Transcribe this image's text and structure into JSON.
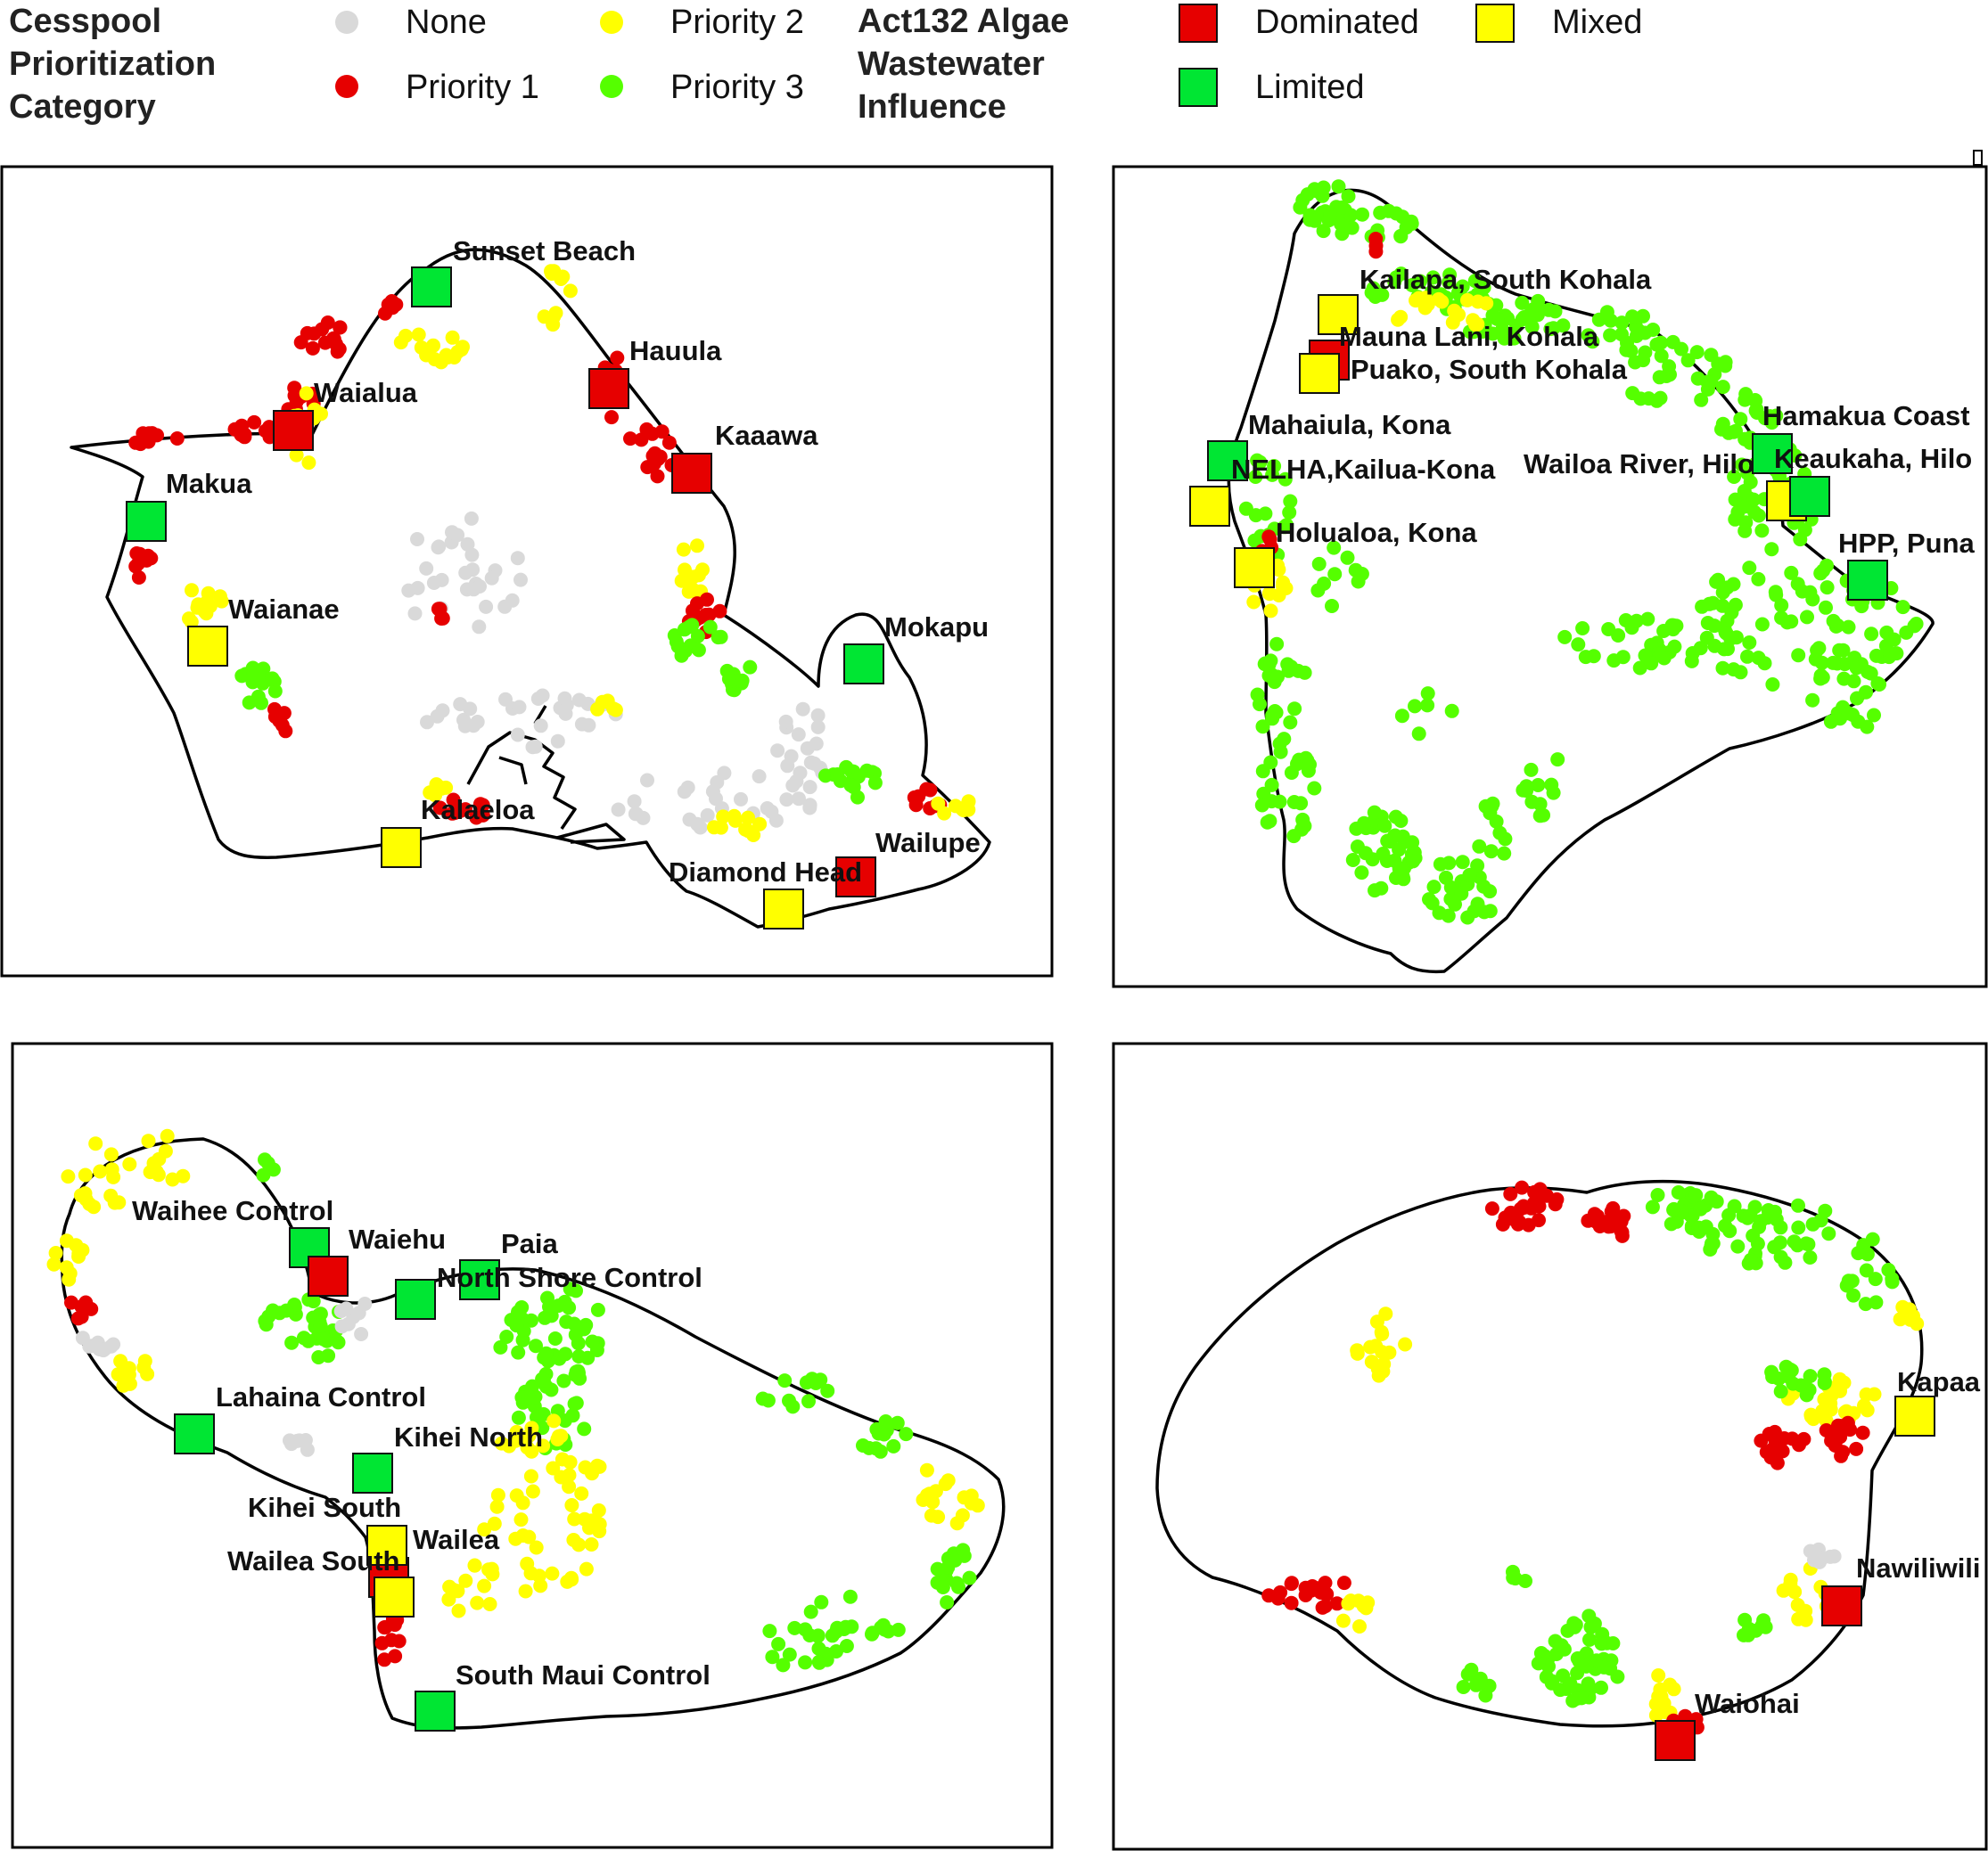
{
  "legend": {
    "cesspool": {
      "title": "Cesspool\nPrioritization\nCategory",
      "items": [
        {
          "label": "None",
          "color": "#d9d9d9"
        },
        {
          "label": "Priority 1",
          "color": "#e60000"
        },
        {
          "label": "Priority 2",
          "color": "#ffff00"
        },
        {
          "label": "Priority 3",
          "color": "#55ff00"
        }
      ]
    },
    "algae": {
      "title": "Act132 Algae\nWastewater\nInfluence",
      "items": [
        {
          "label": "Dominated",
          "color": "#e60000"
        },
        {
          "label": "Mixed",
          "color": "#ffff00"
        },
        {
          "label": "Limited",
          "color": "#00e633"
        }
      ]
    }
  },
  "colors": {
    "None": "#d9d9d9",
    "Priority 1": "#e60000",
    "Priority 2": "#ffff00",
    "Priority 3": "#55ff00",
    "Dominated": "#e60000",
    "Mixed": "#ffff00",
    "Limited": "#00e633"
  },
  "panels": [
    {
      "id": "oahu",
      "sites": [
        {
          "label": "Sunset Beach",
          "influence": "Limited"
        },
        {
          "label": "Hauula",
          "influence": "Dominated"
        },
        {
          "label": "Waialua",
          "influence": "Dominated"
        },
        {
          "label": "Kaaawa",
          "influence": "Dominated"
        },
        {
          "label": "Makua",
          "influence": "Limited"
        },
        {
          "label": "Waianae",
          "influence": "Mixed"
        },
        {
          "label": "Mokapu",
          "influence": "Limited"
        },
        {
          "label": "Kalaeloa",
          "influence": "Mixed"
        },
        {
          "label": "Wailupe",
          "influence": "Mixed"
        },
        {
          "label": "Diamond Head",
          "influence": "Dominated"
        }
      ]
    },
    {
      "id": "hawaii",
      "sites": [
        {
          "label": "Kailapa, South Kohala",
          "influence": "Mixed"
        },
        {
          "label": "Mauna Lani, Kohala",
          "influence": "Dominated"
        },
        {
          "label": "Puako, South Kohala",
          "influence": "Mixed"
        },
        {
          "label": "Mahaiula, Kona",
          "influence": "Limited"
        },
        {
          "label": "NELHA,Kailua-Kona",
          "influence": "Mixed"
        },
        {
          "label": "Holualoa, Kona",
          "influence": "Mixed"
        },
        {
          "label": "Hamakua Coast",
          "influence": "Limited"
        },
        {
          "label": "Wailoa River, Hilo",
          "influence": "Mixed"
        },
        {
          "label": "Keaukaha, Hilo",
          "influence": "Limited"
        },
        {
          "label": "HPP, Puna",
          "influence": "Limited"
        }
      ]
    },
    {
      "id": "maui",
      "sites": [
        {
          "label": "Waihee Control",
          "influence": "Limited"
        },
        {
          "label": "Waiehu",
          "influence": "Dominated"
        },
        {
          "label": "Paia",
          "influence": "Limited"
        },
        {
          "label": "North Shore Control",
          "influence": "Limited"
        },
        {
          "label": "Lahaina Control",
          "influence": "Limited"
        },
        {
          "label": "Kihei North",
          "influence": "Limited"
        },
        {
          "label": "Kihei South",
          "influence": "Dominated"
        },
        {
          "label": "Wailea",
          "influence": "Mixed"
        },
        {
          "label": "Wailea South",
          "influence": "Mixed"
        },
        {
          "label": "South Maui Control",
          "influence": "Limited"
        }
      ]
    },
    {
      "id": "kauai",
      "sites": [
        {
          "label": "Kapaa",
          "influence": "Mixed"
        },
        {
          "label": "Nawiliwili",
          "influence": "Dominated"
        },
        {
          "label": "Waiohai",
          "influence": "Dominated"
        }
      ]
    }
  ]
}
